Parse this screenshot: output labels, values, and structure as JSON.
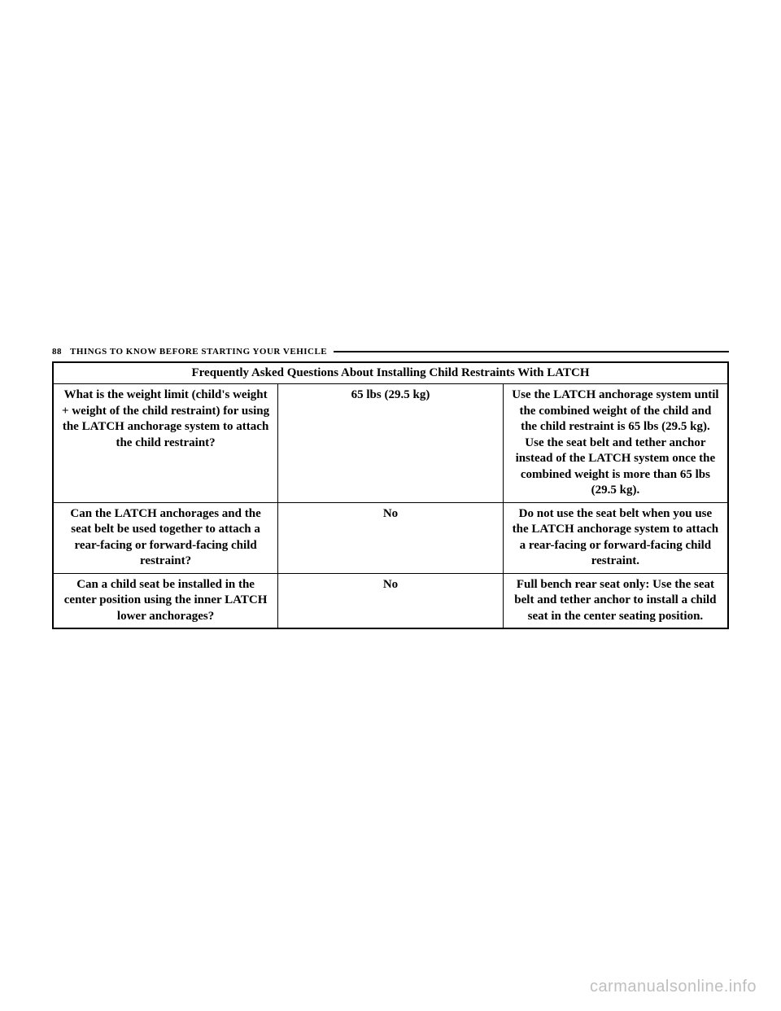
{
  "page": {
    "number": "88",
    "section_title": "THINGS TO KNOW BEFORE STARTING YOUR VEHICLE"
  },
  "table": {
    "title": "Frequently Asked Questions About Installing Child Restraints With LATCH",
    "rows": [
      {
        "question": "What is the weight limit (child's weight + weight of the child restraint) for using the LATCH anchorage system to attach the child restraint?",
        "answer1": "65 lbs (29.5 kg)",
        "answer2": "Use the LATCH anchorage system until the combined weight of the child and the child restraint is 65 lbs (29.5 kg). Use the seat belt and tether anchor instead of the LATCH system once the combined weight is more than 65 lbs (29.5 kg)."
      },
      {
        "question": "Can the LATCH anchorages and the seat belt be used together to attach a rear-facing or forward-facing child restraint?",
        "answer1": "No",
        "answer2": "Do not use the seat belt when you use the LATCH anchorage system to attach a rear-facing or forward-facing child restraint."
      },
      {
        "question": "Can a child seat be installed in the center position using the inner LATCH lower anchorages?",
        "answer1": "No",
        "answer2": "Full bench rear seat only: Use the seat belt and tether anchor to install a child seat in the center seating position."
      }
    ]
  },
  "watermark": "carmanualsonline.info"
}
